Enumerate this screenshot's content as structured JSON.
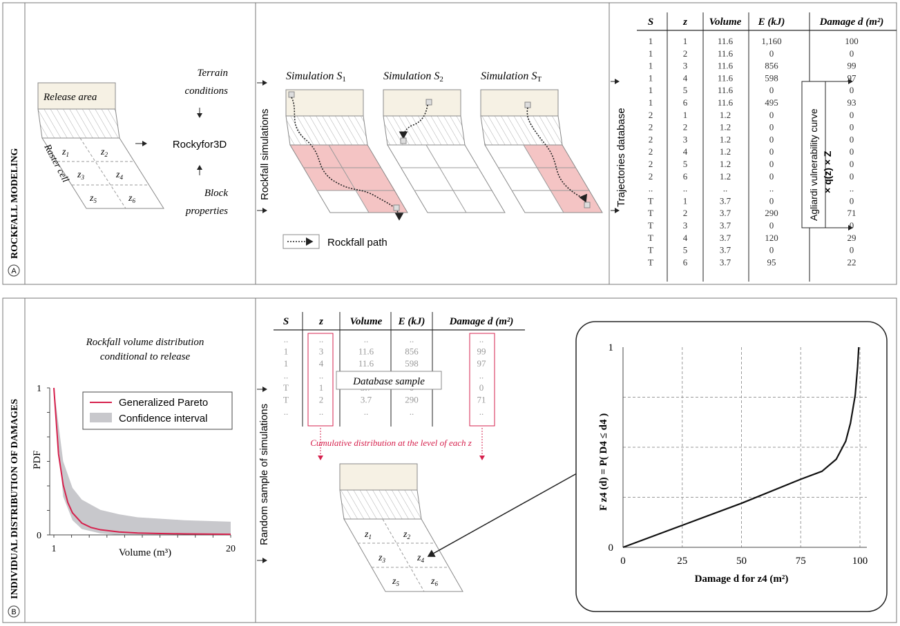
{
  "panel_a": {
    "side_label": "ROCKFALL MODELING",
    "badge": "A",
    "release_area": "Release area",
    "raster_cell": "Raster cell",
    "cells": [
      "z1",
      "z2",
      "z3",
      "z4",
      "z5",
      "z6"
    ],
    "terrain_conditions": [
      "Terrain",
      "conditions"
    ],
    "model": "Rockyfor3D",
    "block_properties": [
      "Block",
      "properties"
    ],
    "rockfall_simulations": "Rockfall simulations",
    "sim_titles": [
      "Simulation S1",
      "Simulation S2",
      "Simulation ST"
    ],
    "legend_path": "Rockfall path",
    "trajectories_db": "Trajectories database",
    "vuln_curve": "Agliardi vulnerability curve",
    "vuln_formula": "× q(z) × Z",
    "table": {
      "headers": [
        "S",
        "z",
        "Volume",
        "E (kJ)",
        "Damage d (m²)"
      ],
      "rows": [
        [
          "1",
          "1",
          "11.6",
          "1,160",
          "100"
        ],
        [
          "1",
          "2",
          "11.6",
          "0",
          "0"
        ],
        [
          "1",
          "3",
          "11.6",
          "856",
          "99"
        ],
        [
          "1",
          "4",
          "11.6",
          "598",
          "97"
        ],
        [
          "1",
          "5",
          "11.6",
          "0",
          "0"
        ],
        [
          "1",
          "6",
          "11.6",
          "495",
          "93"
        ],
        [
          "2",
          "1",
          "1.2",
          "0",
          "0"
        ],
        [
          "2",
          "2",
          "1.2",
          "0",
          "0"
        ],
        [
          "2",
          "3",
          "1.2",
          "0",
          "0"
        ],
        [
          "2",
          "4",
          "1.2",
          "0",
          "0"
        ],
        [
          "2",
          "5",
          "1.2",
          "0",
          "0"
        ],
        [
          "2",
          "6",
          "1.2",
          "0",
          "0"
        ],
        [
          "..",
          "..",
          "..",
          "..",
          ".."
        ],
        [
          "T",
          "1",
          "3.7",
          "0",
          "0"
        ],
        [
          "T",
          "2",
          "3.7",
          "290",
          "71"
        ],
        [
          "T",
          "3",
          "3.7",
          "0",
          "0"
        ],
        [
          "T",
          "4",
          "3.7",
          "120",
          "29"
        ],
        [
          "T",
          "5",
          "3.7",
          "0",
          "0"
        ],
        [
          "T",
          "6",
          "3.7",
          "95",
          "22"
        ]
      ]
    }
  },
  "panel_b": {
    "side_label": "INDIVIDUAL DISTRIBUTION OF DAMAGES",
    "badge": "B",
    "pdf_title": [
      "Rockfall volume distribution",
      "conditional to release"
    ],
    "legend": [
      "Generalized Pareto",
      "Confidence interval"
    ],
    "ylabel": "PDF",
    "xlabel": "Volume (m³)",
    "y_ticks": [
      "1",
      "0"
    ],
    "x_ticks": [
      "1",
      "20"
    ],
    "random_sample": "Random sample of simulations",
    "table": {
      "headers": [
        "S",
        "z",
        "Volume",
        "E (kJ)",
        "Damage d (m²)"
      ],
      "rows": [
        [
          "..",
          "..",
          "..",
          "..",
          ".."
        ],
        [
          "1",
          "3",
          "11.6",
          "856",
          "99"
        ],
        [
          "1",
          "4",
          "11.6",
          "598",
          "97"
        ],
        [
          "..",
          "..",
          "..",
          "..",
          ".."
        ],
        [
          "T",
          "1",
          "3.7",
          "0",
          "0"
        ],
        [
          "T",
          "2",
          "3.7",
          "290",
          "71"
        ],
        [
          "..",
          "..",
          "..",
          "..",
          ".."
        ]
      ]
    },
    "database_sample": "Database sample",
    "cumulative_note": "Cumulative distribution at the level of each z",
    "cells": [
      "z1",
      "z2",
      "z3",
      "z4",
      "z5",
      "z6"
    ],
    "cdf_ylabel": "F z4 (d) = P( D4 ≤ d4 )",
    "cdf_xlabel": "Damage d for z4 (m²)",
    "cdf_x_ticks": [
      "0",
      "25",
      "50",
      "75",
      "100"
    ],
    "cdf_y_ticks": [
      "0",
      "1"
    ]
  },
  "colors": {
    "pareto": "#d6204c",
    "ci": "#c8c8cc",
    "release": "#f6f1e4",
    "impact": "#f4c4c4",
    "note": "#d6204c"
  },
  "chart_data": [
    {
      "type": "line",
      "title": "Rockfall volume distribution conditional to release",
      "xlabel": "Volume (m³)",
      "ylabel": "PDF",
      "xlim": [
        1,
        20
      ],
      "ylim": [
        0,
        1
      ],
      "series": [
        {
          "name": "Generalized Pareto",
          "x": [
            1,
            1.5,
            2,
            2.5,
            3,
            4,
            5,
            6,
            8,
            10,
            12,
            15,
            18,
            20
          ],
          "y": [
            1.0,
            0.55,
            0.34,
            0.22,
            0.15,
            0.08,
            0.05,
            0.035,
            0.02,
            0.013,
            0.01,
            0.007,
            0.005,
            0.004
          ]
        },
        {
          "name": "Confidence interval",
          "x": [
            1,
            2,
            3,
            4,
            6,
            8,
            10,
            15,
            20
          ],
          "upper": [
            1.0,
            0.5,
            0.32,
            0.24,
            0.17,
            0.14,
            0.12,
            0.1,
            0.09
          ],
          "lower": [
            0.96,
            0.26,
            0.1,
            0.04,
            0.01,
            0.0,
            0.0,
            0.0,
            0.0
          ]
        }
      ]
    },
    {
      "type": "line",
      "title": "",
      "xlabel": "Damage d for z4 (m²)",
      "ylabel": "F z4 (d) = P( D4 ≤ d4 )",
      "xlim": [
        0,
        100
      ],
      "ylim": [
        0,
        1
      ],
      "series": [
        {
          "name": "",
          "x": [
            0,
            25,
            50,
            75,
            84,
            90,
            94,
            96,
            98,
            99,
            99.5
          ],
          "y": [
            0,
            0.11,
            0.22,
            0.34,
            0.38,
            0.44,
            0.53,
            0.62,
            0.76,
            0.9,
            1.0
          ]
        }
      ]
    }
  ]
}
